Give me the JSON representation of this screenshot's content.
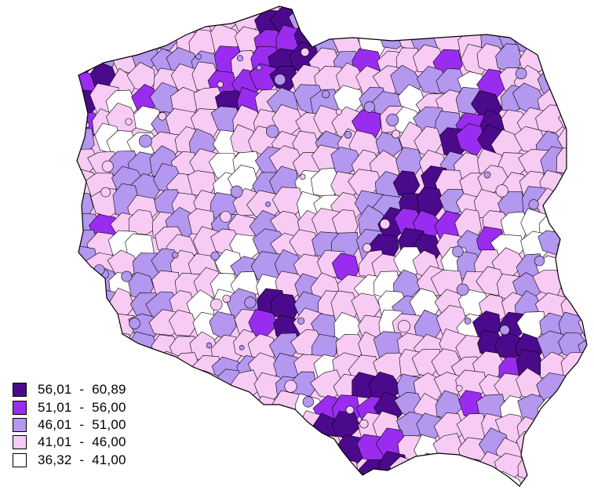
{
  "legend": {
    "classes": [
      {
        "label": "56,01  -  60,89",
        "color": "#4b0a8c"
      },
      {
        "label": "51,01  -  56,00",
        "color": "#9a2cf0"
      },
      {
        "label": "46,01  -  51,00",
        "color": "#b497ef"
      },
      {
        "label": "41,01  -  46,00",
        "color": "#f7cbf4"
      },
      {
        "label": "36,32  -  41,00",
        "color": "#ffffff"
      }
    ]
  },
  "map": {
    "background_color": "#f5c8f2",
    "border_color": "#000000"
  }
}
